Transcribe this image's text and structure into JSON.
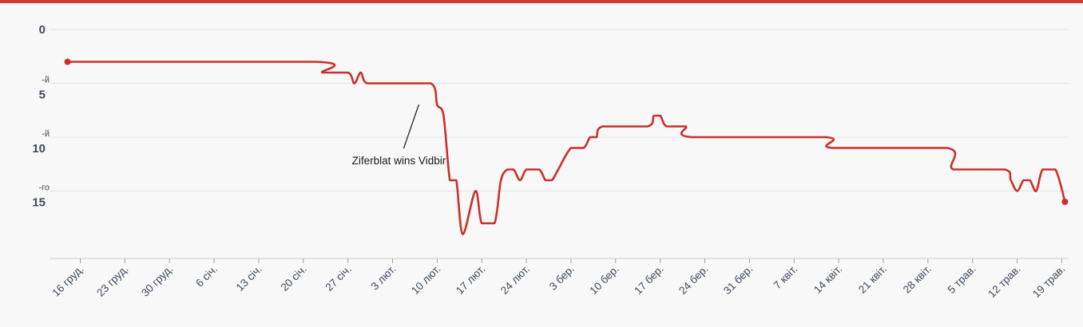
{
  "chart_data": {
    "type": "line",
    "title": "",
    "xlabel": "",
    "ylabel": "",
    "y_inverted": true,
    "ylim": [
      0,
      20
    ],
    "grid": true,
    "line_color": "#c8302b",
    "y_ticks": [
      {
        "value": 0,
        "label": "0",
        "suffix": ""
      },
      {
        "value": 5,
        "label": "5",
        "suffix": "-й"
      },
      {
        "value": 10,
        "label": "10",
        "suffix": "-й"
      },
      {
        "value": 15,
        "label": "15",
        "suffix": "-го"
      }
    ],
    "x_ticks": [
      {
        "day": 0,
        "label": "16 груд."
      },
      {
        "day": 7,
        "label": "23 груд."
      },
      {
        "day": 14,
        "label": "30 груд."
      },
      {
        "day": 21,
        "label": "6 січ."
      },
      {
        "day": 28,
        "label": "13 січ."
      },
      {
        "day": 35,
        "label": "20 січ."
      },
      {
        "day": 42,
        "label": "27 січ."
      },
      {
        "day": 49,
        "label": "3 лют."
      },
      {
        "day": 56,
        "label": "10 лют."
      },
      {
        "day": 63,
        "label": "17 лют."
      },
      {
        "day": 70,
        "label": "24 лют."
      },
      {
        "day": 77,
        "label": "3 бер."
      },
      {
        "day": 84,
        "label": "10 бер."
      },
      {
        "day": 91,
        "label": "17 бер."
      },
      {
        "day": 98,
        "label": "24 бер."
      },
      {
        "day": 105,
        "label": "31 бер."
      },
      {
        "day": 112,
        "label": "7 квіт."
      },
      {
        "day": 119,
        "label": "14 квіт."
      },
      {
        "day": 126,
        "label": "21 квіт."
      },
      {
        "day": 133,
        "label": "28 квіт."
      },
      {
        "day": 140,
        "label": "5 трав."
      },
      {
        "day": 147,
        "label": "12 трав."
      },
      {
        "day": 154,
        "label": "19 трав."
      }
    ],
    "series": [
      {
        "points": [
          [
            -2,
            3
          ],
          [
            37,
            3
          ],
          [
            38,
            4
          ],
          [
            42,
            4
          ],
          [
            43,
            5
          ],
          [
            44,
            4
          ],
          [
            45,
            5
          ],
          [
            49,
            5
          ],
          [
            55,
            5
          ],
          [
            56,
            7
          ],
          [
            57,
            8
          ],
          [
            58,
            14
          ],
          [
            59,
            14
          ],
          [
            60,
            19
          ],
          [
            62,
            15
          ],
          [
            63,
            18
          ],
          [
            65,
            18
          ],
          [
            66,
            14
          ],
          [
            67,
            13
          ],
          [
            68,
            13
          ],
          [
            69,
            14
          ],
          [
            70,
            13
          ],
          [
            72,
            13
          ],
          [
            73,
            14
          ],
          [
            74,
            14
          ],
          [
            75,
            13
          ],
          [
            77,
            11
          ],
          [
            79,
            11
          ],
          [
            80,
            10
          ],
          [
            81,
            10
          ],
          [
            82,
            9
          ],
          [
            89,
            9
          ],
          [
            90,
            8
          ],
          [
            91,
            8
          ],
          [
            92,
            9
          ],
          [
            95,
            9
          ],
          [
            96,
            10
          ],
          [
            117,
            10
          ],
          [
            118,
            11
          ],
          [
            136,
            11
          ],
          [
            137,
            13
          ],
          [
            145,
            13
          ],
          [
            146,
            14
          ],
          [
            147,
            15
          ],
          [
            148,
            14
          ],
          [
            149,
            14
          ],
          [
            150,
            15
          ],
          [
            151,
            13
          ],
          [
            153,
            13
          ],
          [
            154.5,
            16
          ]
        ]
      }
    ],
    "annotations": [
      {
        "text": "Ziferblat wins Vidbir",
        "day": 53
      }
    ]
  }
}
